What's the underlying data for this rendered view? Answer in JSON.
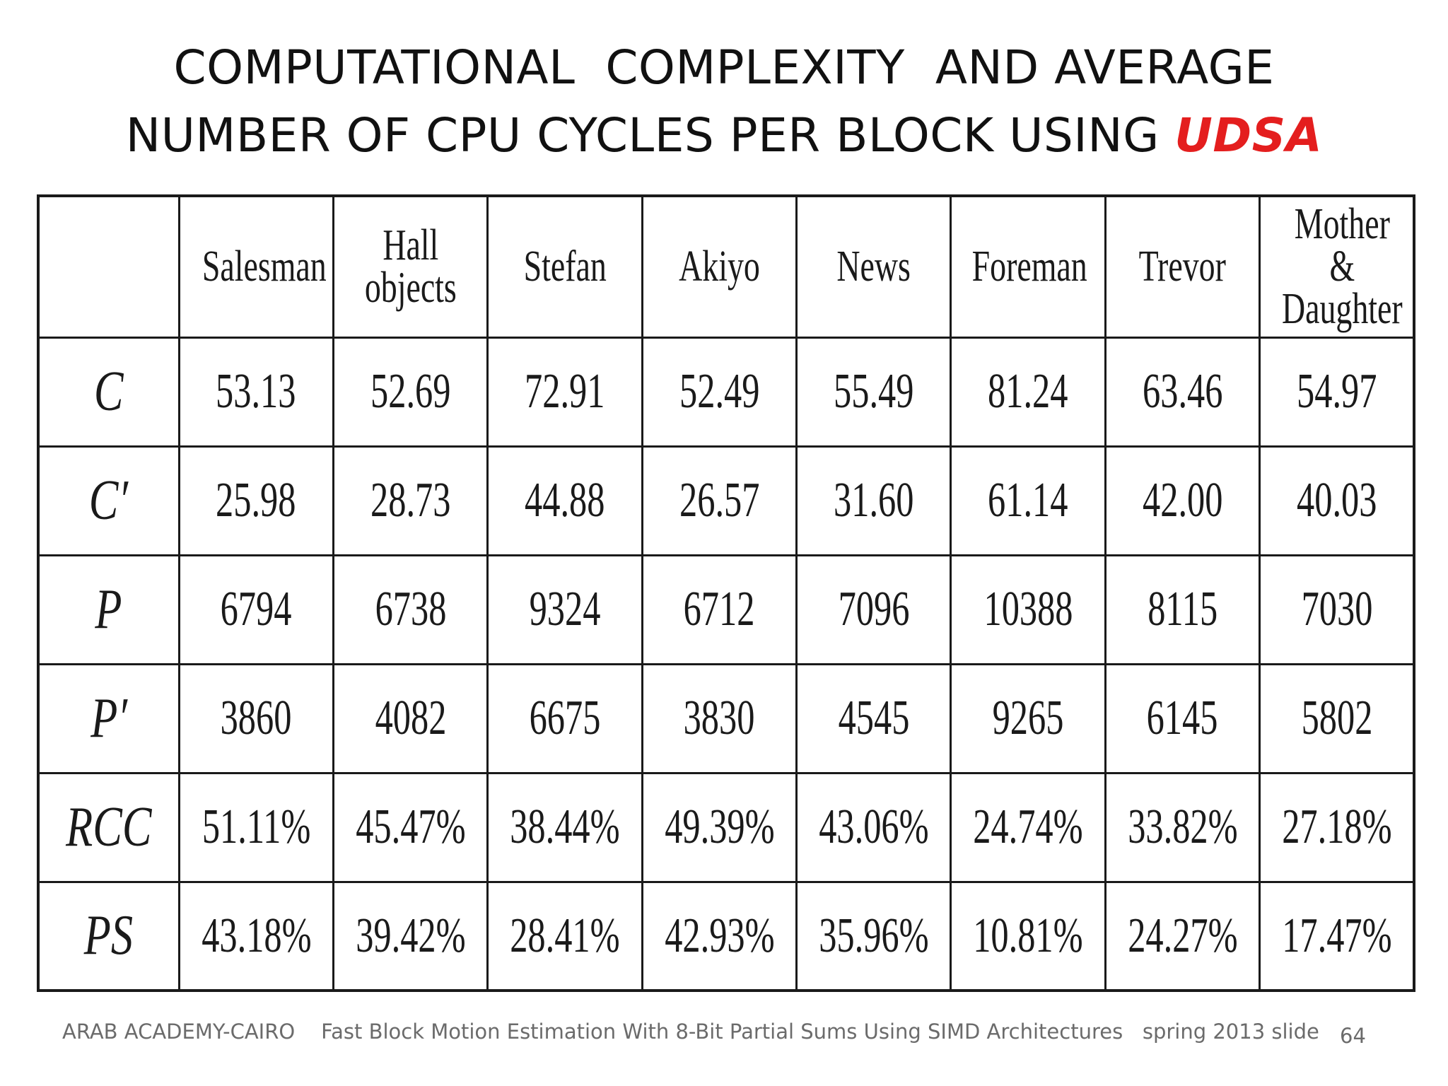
{
  "title": {
    "line1": "COMPUTATIONAL  COMPLEXITY  AND AVERAGE",
    "line2_prefix": "NUMBER OF CPU CYCLES PER BLOCK USING ",
    "line2_accent": "UDSA",
    "accent_color": "#e41e1e"
  },
  "table": {
    "corner": "",
    "columns": [
      "Salesman",
      "Hall\nobjects",
      "Stefan",
      "Akiyo",
      "News",
      "Foreman",
      "Trevor",
      "Mother &\nDaughter"
    ],
    "rows": [
      {
        "label": "C",
        "values": [
          "53.13",
          "52.69",
          "72.91",
          "52.49",
          "55.49",
          "81.24",
          "63.46",
          "54.97"
        ]
      },
      {
        "label": "C′",
        "values": [
          "25.98",
          "28.73",
          "44.88",
          "26.57",
          "31.60",
          "61.14",
          "42.00",
          "40.03"
        ]
      },
      {
        "label": "P",
        "values": [
          "6794",
          "6738",
          "9324",
          "6712",
          "7096",
          "10388",
          "8115",
          "7030"
        ]
      },
      {
        "label": "P′",
        "values": [
          "3860",
          "4082",
          "6675",
          "3830",
          "4545",
          "9265",
          "6145",
          "5802"
        ]
      },
      {
        "label": "RCC",
        "values": [
          "51.11%",
          "45.47%",
          "38.44%",
          "49.39%",
          "43.06%",
          "24.74%",
          "33.82%",
          "27.18%"
        ]
      },
      {
        "label": "PS",
        "values": [
          "43.18%",
          "39.42%",
          "28.41%",
          "42.93%",
          "35.96%",
          "10.81%",
          "24.27%",
          "17.47%"
        ]
      }
    ]
  },
  "footer": {
    "text": "ARAB ACADEMY-CAIRO    Fast Block Motion Estimation With 8-Bit Partial Sums Using SIMD Architectures   spring 2013 slide",
    "page_number": "64"
  }
}
